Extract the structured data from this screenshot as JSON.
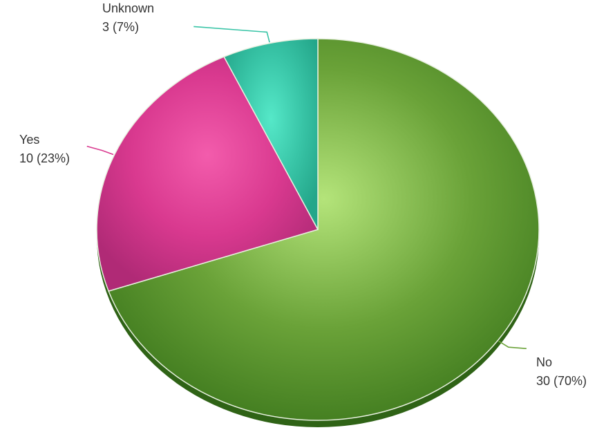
{
  "chart_data": {
    "type": "pie",
    "title": "",
    "slices": [
      {
        "name": "No",
        "value": 30,
        "percent": 70,
        "value_label": "30 (70%)",
        "color": "#6aa238",
        "color_light": "#b4e47a",
        "color_dark": "#3f7a1e"
      },
      {
        "name": "Yes",
        "value": 10,
        "percent": 23,
        "value_label": "10 (23%)",
        "color": "#d9398f",
        "color_light": "#f35cac",
        "color_dark": "#b02a76"
      },
      {
        "name": "Unknown",
        "value": 3,
        "percent": 7,
        "value_label": "3 (7%)",
        "color": "#38c4a6",
        "color_light": "#55e8c8",
        "color_dark": "#24a68a"
      }
    ],
    "start_angle_deg": 0,
    "direction": "clockwise",
    "legend": "none",
    "style": "3d-shaded"
  }
}
